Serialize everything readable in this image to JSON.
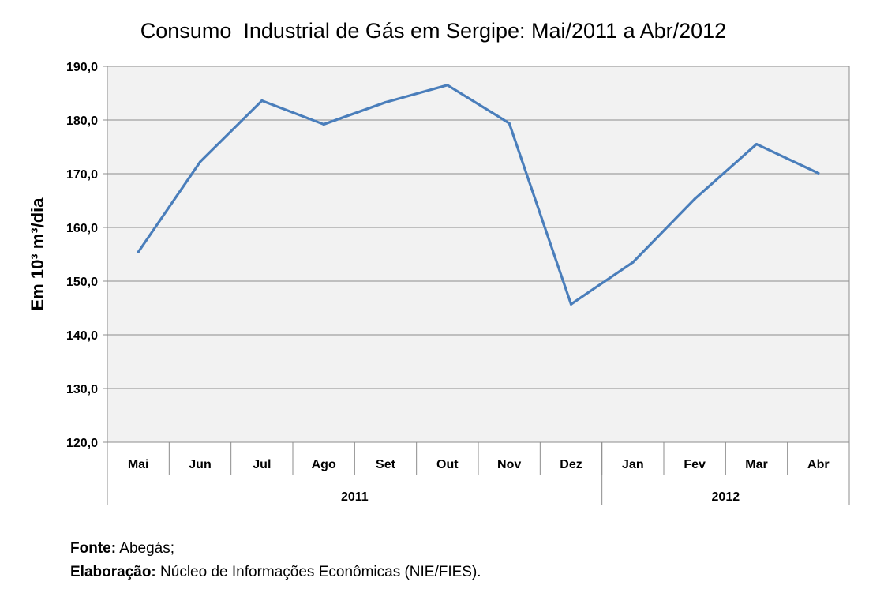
{
  "chart_data": {
    "type": "line",
    "title": "Consumo  Industrial de Gás em Sergipe: Mai/2011 a Abr/2012",
    "ylabel": "Em 10³ m³/dia",
    "xlabel": "",
    "ylim": [
      120,
      190
    ],
    "ytick_step": 10,
    "ytick_labels": [
      "120,0",
      "130,0",
      "140,0",
      "150,0",
      "160,0",
      "170,0",
      "180,0",
      "190,0"
    ],
    "categories": [
      "Mai",
      "Jun",
      "Jul",
      "Ago",
      "Set",
      "Out",
      "Nov",
      "Dez",
      "Jan",
      "Fev",
      "Mar",
      "Abr"
    ],
    "groups": [
      {
        "label": "2011",
        "count": 8
      },
      {
        "label": "2012",
        "count": 4
      }
    ],
    "series": [
      {
        "values": [
          155.4,
          172.2,
          183.6,
          179.2,
          183.3,
          186.5,
          179.4,
          145.7,
          153.5,
          165.3,
          175.5,
          170.1
        ]
      }
    ],
    "line_color": "#4a7ebb",
    "plot_background": "#f2f2f2",
    "grid": true,
    "legend": false
  },
  "footer": {
    "source_label": "Fonte:",
    "source_text": " Abegás;",
    "credit_label": "Elaboração:",
    "credit_text": " Núcleo de Informações Econômicas (NIE/FIES)."
  }
}
